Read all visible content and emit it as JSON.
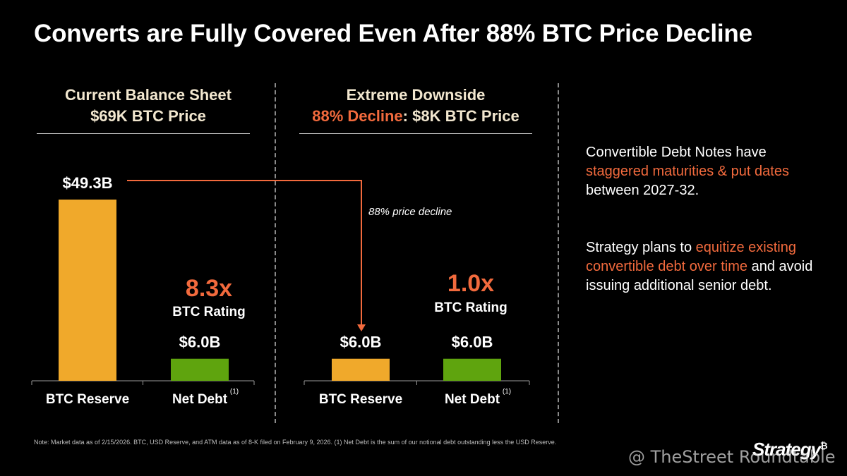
{
  "title": "Converts are Fully Covered Even After 88% BTC Price Decline",
  "left_panel": {
    "line1": "Current Balance Sheet",
    "line2": "$69K BTC Price"
  },
  "right_panel": {
    "line1": "Extreme Downside",
    "line2_accent": "88% Decline",
    "line2_rest": ": $8K BTC Price"
  },
  "arrow_label": "88% price decline",
  "chart_data": [
    {
      "type": "bar",
      "title": "Current Balance Sheet $69K BTC Price",
      "categories": [
        "BTC Reserve",
        "Net Debt"
      ],
      "values": [
        49.3,
        6.0
      ],
      "value_labels": [
        "$49.3B",
        "$6.0B"
      ],
      "colors": [
        "#f0a92b",
        "#5fa40e"
      ],
      "footnote_marks": [
        "",
        "(1)"
      ],
      "ratio": {
        "value": "8.3x",
        "label": "BTC Rating"
      }
    },
    {
      "type": "bar",
      "title": "Extreme Downside 88% Decline: $8K BTC Price",
      "categories": [
        "BTC Reserve",
        "Net Debt"
      ],
      "values": [
        6.0,
        6.0
      ],
      "value_labels": [
        "$6.0B",
        "$6.0B"
      ],
      "colors": [
        "#f0a92b",
        "#5fa40e"
      ],
      "footnote_marks": [
        "",
        "(1)"
      ],
      "ratio": {
        "value": "1.0x",
        "label": "BTC Rating"
      }
    }
  ],
  "side_notes": [
    {
      "pre": "Convertible Debt Notes have ",
      "accent": "staggered maturities & put dates",
      "post": " between 2027-32."
    },
    {
      "pre": "Strategy plans to ",
      "accent": "equitize existing convertible debt over time",
      "post": " and avoid issuing additional senior debt."
    }
  ],
  "footnote": "Note: Market data as of 2/15/2026. BTC, USD Reserve, and ATM data as of 8-K filed on February 9, 2026. (1) Net Debt is the sum of our notional debt outstanding less the USD Reserve.",
  "logo": {
    "text": "Strategy",
    "mark": "₿"
  },
  "watermark": "@ TheStreet Roundtable",
  "colors": {
    "accent": "#f26a3d",
    "btc_bar": "#f0a92b",
    "debt_bar": "#5fa40e",
    "header_text": "#f2e7cf"
  }
}
